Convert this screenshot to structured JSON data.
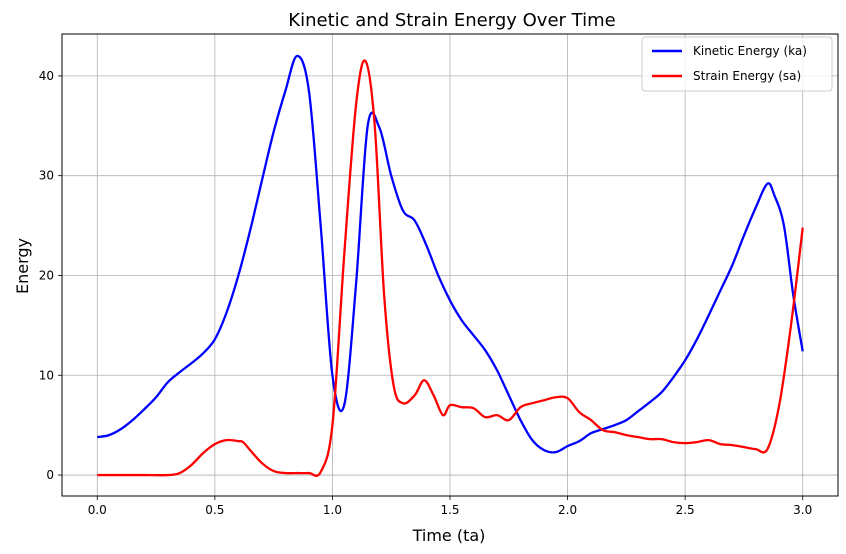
{
  "chart_data": {
    "type": "line",
    "title": "Kinetic and Strain Energy Over Time",
    "xlabel": "Time (ta)",
    "ylabel": "Energy",
    "xlim": [
      -0.15,
      3.15
    ],
    "ylim": [
      -2.1,
      44.2
    ],
    "xticks": [
      0.0,
      0.5,
      1.0,
      1.5,
      2.0,
      2.5,
      3.0
    ],
    "xtick_labels": [
      "0.0",
      "0.5",
      "1.0",
      "1.5",
      "2.0",
      "2.5",
      "3.0"
    ],
    "yticks": [
      0,
      10,
      20,
      30,
      40
    ],
    "ytick_labels": [
      "0",
      "10",
      "20",
      "30",
      "40"
    ],
    "grid": true,
    "legend_position": "top-right",
    "series": [
      {
        "name": "Kinetic Energy (ka)",
        "color": "#0000ff",
        "x": [
          0.0,
          0.05,
          0.1,
          0.15,
          0.2,
          0.25,
          0.3,
          0.35,
          0.4,
          0.45,
          0.5,
          0.55,
          0.6,
          0.65,
          0.7,
          0.75,
          0.8,
          0.85,
          0.9,
          0.95,
          1.0,
          1.05,
          1.1,
          1.15,
          1.2,
          1.25,
          1.3,
          1.35,
          1.4,
          1.45,
          1.5,
          1.55,
          1.6,
          1.65,
          1.7,
          1.75,
          1.8,
          1.85,
          1.9,
          1.95,
          2.0,
          2.05,
          2.1,
          2.15,
          2.2,
          2.25,
          2.3,
          2.35,
          2.4,
          2.45,
          2.5,
          2.55,
          2.6,
          2.65,
          2.7,
          2.75,
          2.8,
          2.85,
          2.88,
          2.92,
          2.96,
          3.0
        ],
        "y": [
          3.8,
          4.0,
          4.6,
          5.5,
          6.6,
          7.8,
          9.3,
          10.3,
          11.2,
          12.2,
          13.6,
          16.3,
          20.0,
          24.5,
          29.5,
          34.4,
          38.5,
          42.0,
          38.5,
          25.0,
          10.0,
          7.0,
          19.0,
          35.0,
          34.8,
          30.0,
          26.5,
          25.5,
          23.0,
          20.0,
          17.5,
          15.5,
          14.0,
          12.5,
          10.5,
          8.0,
          5.5,
          3.5,
          2.5,
          2.3,
          2.9,
          3.4,
          4.2,
          4.6,
          5.0,
          5.5,
          6.4,
          7.3,
          8.3,
          9.8,
          11.5,
          13.6,
          16.0,
          18.5,
          21.0,
          24.0,
          26.8,
          29.2,
          28.0,
          25.0,
          18.0,
          12.4
        ]
      },
      {
        "name": "Strain Energy (sa)",
        "color": "#ff0000",
        "x": [
          0.0,
          0.1,
          0.2,
          0.3,
          0.35,
          0.4,
          0.45,
          0.5,
          0.55,
          0.6,
          0.62,
          0.65,
          0.7,
          0.75,
          0.8,
          0.85,
          0.9,
          0.95,
          1.0,
          1.05,
          1.1,
          1.14,
          1.18,
          1.22,
          1.26,
          1.3,
          1.35,
          1.39,
          1.43,
          1.47,
          1.5,
          1.55,
          1.6,
          1.65,
          1.7,
          1.75,
          1.8,
          1.85,
          1.9,
          1.95,
          2.0,
          2.05,
          2.1,
          2.15,
          2.2,
          2.25,
          2.3,
          2.35,
          2.4,
          2.45,
          2.5,
          2.55,
          2.6,
          2.65,
          2.7,
          2.75,
          2.8,
          2.85,
          2.9,
          2.95,
          3.0
        ],
        "y": [
          0.0,
          0.0,
          0.0,
          0.0,
          0.2,
          1.0,
          2.2,
          3.1,
          3.5,
          3.4,
          3.3,
          2.5,
          1.2,
          0.4,
          0.2,
          0.2,
          0.2,
          0.3,
          5.0,
          22.0,
          37.0,
          41.5,
          35.0,
          18.0,
          9.0,
          7.2,
          8.0,
          9.5,
          8.0,
          6.0,
          7.0,
          6.8,
          6.7,
          5.8,
          6.0,
          5.5,
          6.8,
          7.2,
          7.5,
          7.8,
          7.7,
          6.3,
          5.5,
          4.5,
          4.3,
          4.0,
          3.8,
          3.6,
          3.6,
          3.3,
          3.2,
          3.3,
          3.5,
          3.1,
          3.0,
          2.8,
          2.6,
          2.6,
          7.0,
          15.0,
          24.8
        ]
      }
    ]
  }
}
